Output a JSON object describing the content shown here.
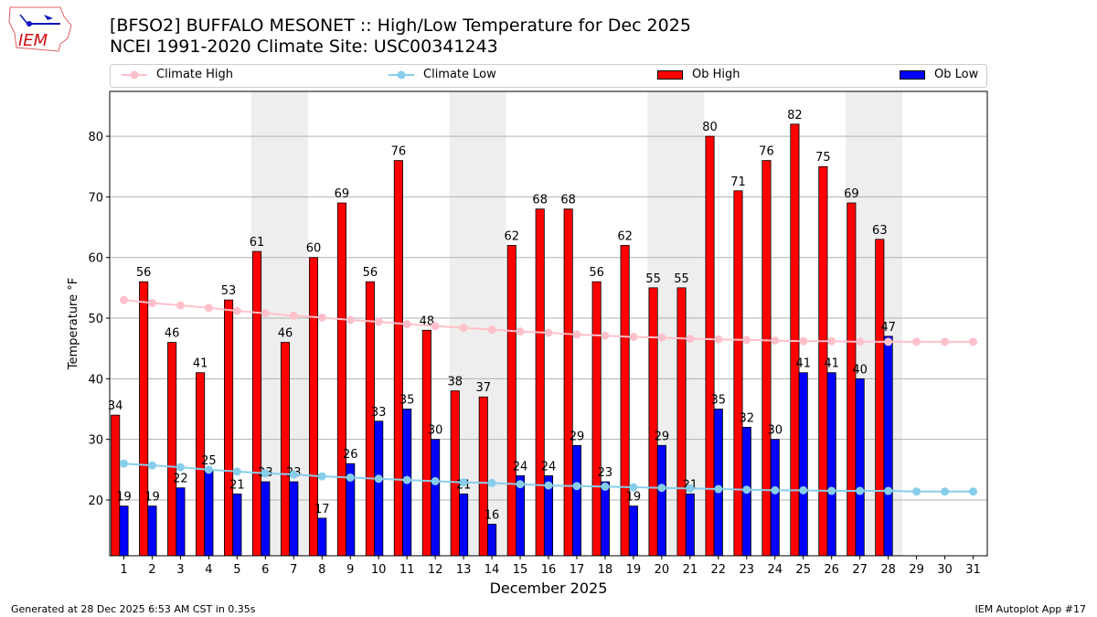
{
  "header": {
    "title_line1": "[BFSO2] BUFFALO MESONET :: High/Low Temperature for Dec 2025",
    "title_line2": "NCEI 1991-2020 Climate Site: USC00341243"
  },
  "logo": {
    "text": "IEM"
  },
  "footer": {
    "left": "Generated at 28 Dec 2025 6:53 AM CST in 0.35s",
    "right": "IEM Autoplot App #17"
  },
  "chart_data": {
    "type": "bar",
    "xlabel": "December 2025",
    "ylabel": "Temperature °F",
    "xlim": [
      0.5,
      31.5
    ],
    "ylim": [
      10.8,
      87.4
    ],
    "yticks": [
      20,
      30,
      40,
      50,
      60,
      70,
      80
    ],
    "grid": true,
    "legend_position": "top",
    "weekend_shading": [
      [
        6,
        7
      ],
      [
        13,
        14
      ],
      [
        20,
        21
      ],
      [
        27,
        28
      ]
    ],
    "colors": {
      "ob_high": "#ff0000",
      "ob_low": "#0000ff",
      "climate_high": "#ffc0cb",
      "climate_low": "#87ceeb",
      "weekend": "#eeeeee"
    },
    "legend": [
      "Climate High",
      "Climate Low",
      "Ob High",
      "Ob Low"
    ],
    "days": [
      1,
      2,
      3,
      4,
      5,
      6,
      7,
      8,
      9,
      10,
      11,
      12,
      13,
      14,
      15,
      16,
      17,
      18,
      19,
      20,
      21,
      22,
      23,
      24,
      25,
      26,
      27,
      28,
      29,
      30,
      31
    ],
    "series": [
      {
        "name": "Ob High",
        "values": [
          34,
          56,
          46,
          41,
          53,
          61,
          46,
          60,
          69,
          56,
          76,
          48,
          38,
          37,
          62,
          68,
          68,
          56,
          62,
          55,
          55,
          80,
          71,
          76,
          82,
          75,
          69,
          63
        ]
      },
      {
        "name": "Ob Low",
        "values": [
          19,
          19,
          22,
          25,
          21,
          23,
          23,
          17,
          26,
          33,
          35,
          30,
          21,
          16,
          24,
          24,
          29,
          23,
          19,
          29,
          21,
          35,
          32,
          30,
          41,
          41,
          40,
          47
        ]
      },
      {
        "name": "Climate High",
        "values": [
          53.0,
          52.5,
          52.1,
          51.7,
          51.2,
          50.8,
          50.4,
          50.1,
          49.7,
          49.4,
          49.0,
          48.7,
          48.4,
          48.1,
          47.8,
          47.6,
          47.3,
          47.1,
          46.9,
          46.8,
          46.6,
          46.5,
          46.4,
          46.3,
          46.2,
          46.2,
          46.1,
          46.1,
          46.1,
          46.1,
          46.1
        ]
      },
      {
        "name": "Climate Low",
        "values": [
          26.0,
          25.7,
          25.4,
          25.0,
          24.7,
          24.4,
          24.2,
          23.9,
          23.7,
          23.5,
          23.3,
          23.1,
          22.9,
          22.8,
          22.6,
          22.4,
          22.3,
          22.2,
          22.1,
          22.0,
          21.9,
          21.8,
          21.7,
          21.6,
          21.6,
          21.5,
          21.5,
          21.5,
          21.4,
          21.4,
          21.4
        ]
      }
    ]
  }
}
